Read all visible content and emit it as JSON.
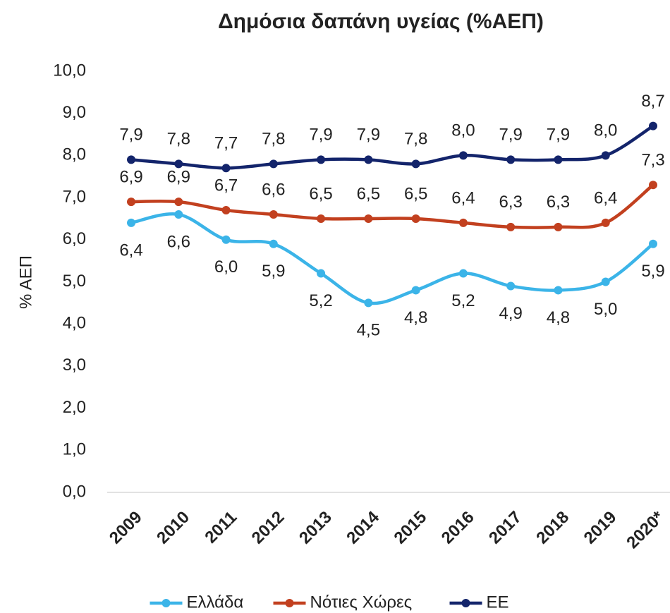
{
  "chart_data": {
    "type": "line",
    "title": "Δημόσια δαπάνη υγείας (%ΑΕΠ)",
    "y_label": "% ΑΕΠ",
    "categories": [
      "2009",
      "2010",
      "2011",
      "2012",
      "2013",
      "2014",
      "2015",
      "2016",
      "2017",
      "2018",
      "2019",
      "2020*"
    ],
    "series": [
      {
        "name": "Ελλάδα",
        "color": "#3bb4e8",
        "values": [
          6.4,
          6.6,
          6.0,
          5.9,
          5.2,
          4.5,
          4.8,
          5.2,
          4.9,
          4.8,
          5.0,
          5.9
        ],
        "value_labels": [
          "6,4",
          "6,6",
          "6,0",
          "5,9",
          "5,2",
          "4,5",
          "4,8",
          "5,2",
          "4,9",
          "4,8",
          "5,0",
          "5,9"
        ]
      },
      {
        "name": "Νότιες Χώρες",
        "color": "#c2401f",
        "values": [
          6.9,
          6.9,
          6.7,
          6.6,
          6.5,
          6.5,
          6.5,
          6.4,
          6.3,
          6.3,
          6.4,
          7.3
        ],
        "value_labels": [
          "6,9",
          "6,9",
          "6,7",
          "6,6",
          "6,5",
          "6,5",
          "6,5",
          "6,4",
          "6,3",
          "6,3",
          "6,4",
          "7,3"
        ]
      },
      {
        "name": "ΕΕ",
        "color": "#13246b",
        "values": [
          7.9,
          7.8,
          7.7,
          7.8,
          7.9,
          7.9,
          7.8,
          8.0,
          7.9,
          7.9,
          8.0,
          8.7
        ],
        "value_labels": [
          "7,9",
          "7,8",
          "7,7",
          "7,8",
          "7,9",
          "7,9",
          "7,8",
          "8,0",
          "7,9",
          "7,9",
          "8,0",
          "8,7"
        ]
      }
    ],
    "ylim": [
      0,
      10
    ],
    "yticks": [
      {
        "value": 0,
        "label": "0,0"
      },
      {
        "value": 1,
        "label": "1,0"
      },
      {
        "value": 2,
        "label": "2,0"
      },
      {
        "value": 3,
        "label": "3,0"
      },
      {
        "value": 4,
        "label": "4,0"
      },
      {
        "value": 5,
        "label": "5,0"
      },
      {
        "value": 6,
        "label": "6,0"
      },
      {
        "value": 7,
        "label": "7,0"
      },
      {
        "value": 8,
        "label": "8,0"
      },
      {
        "value": 9,
        "label": "9,0"
      },
      {
        "value": 10,
        "label": "10,0"
      }
    ],
    "grid": false,
    "legend": "bottom"
  }
}
